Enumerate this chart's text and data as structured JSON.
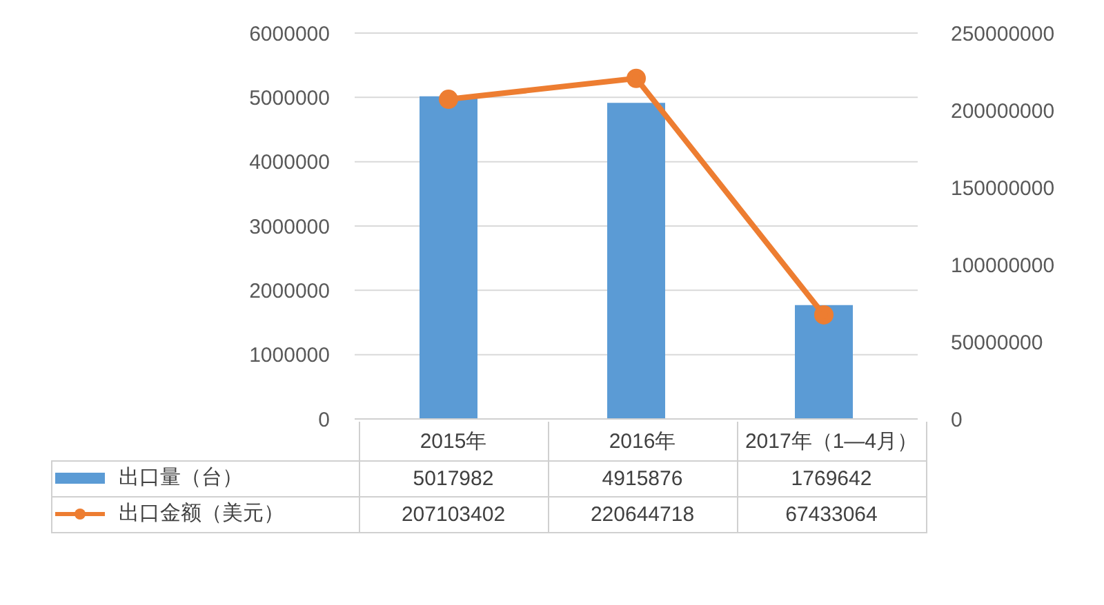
{
  "chart_data": {
    "type": "bar",
    "categories": [
      "2015年",
      "2016年",
      "2017年（1—4月）"
    ],
    "series": [
      {
        "name": "出口量（台）",
        "type": "bar",
        "color": "#5b9bd5",
        "values": [
          5017982,
          4915876,
          1769642
        ]
      },
      {
        "name": "出口金额（美元）",
        "type": "line",
        "axis": "y2",
        "color": "#ed7d31",
        "values": [
          207103402,
          220644718,
          67433064
        ]
      }
    ],
    "ylim": [
      0,
      6000000
    ],
    "yticks": [
      0,
      1000000,
      2000000,
      3000000,
      4000000,
      5000000,
      6000000
    ],
    "y2lim": [
      0,
      250000000
    ],
    "y2ticks": [
      0,
      50000000,
      100000000,
      150000000,
      200000000,
      250000000
    ],
    "grid": "y",
    "legend": "bottom left",
    "marker": "circle",
    "data_labels": true
  }
}
